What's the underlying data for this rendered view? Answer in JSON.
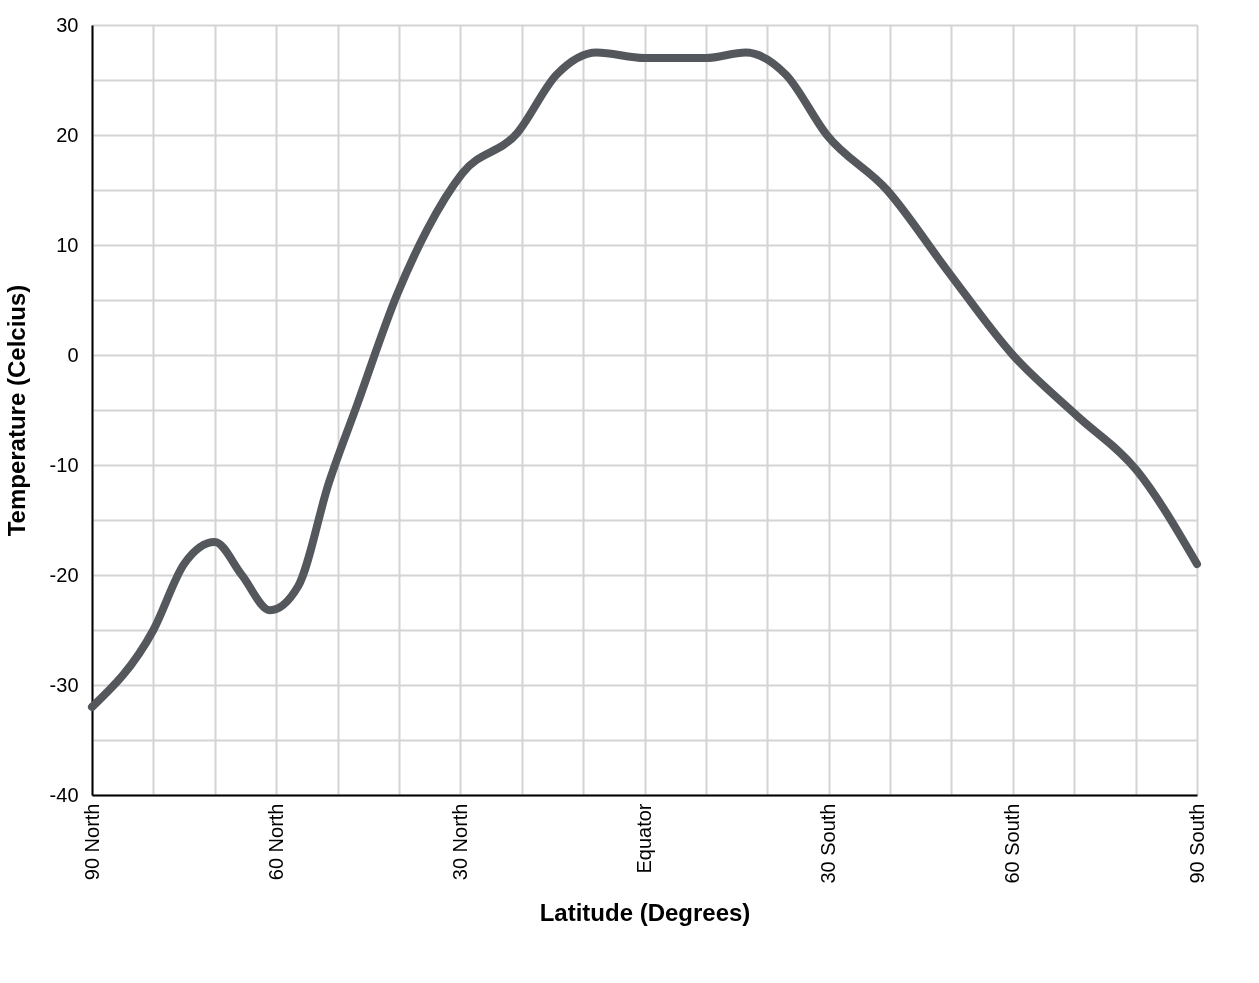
{
  "chart_data": {
    "type": "line",
    "xlabel": "Latitude (Degrees)",
    "ylabel": "Temperature (Celcius)",
    "x": [
      90,
      80,
      75,
      70,
      65.6,
      61,
      56.4,
      51.4,
      46.8,
      40.3,
      35.4,
      29.7,
      20.7,
      14.3,
      7.8,
      0,
      -10,
      -16.5,
      -23,
      -29.7,
      -39.5,
      -49.3,
      -60,
      -70.4,
      -80.2,
      -90
    ],
    "series": [
      {
        "color": "#54585d",
        "values": [
          -32,
          -25,
          -19,
          -17,
          -20,
          -23.2,
          -21,
          -11.6,
          -4.5,
          5.5,
          11.4,
          16.5,
          20.2,
          25.5,
          27.5,
          27,
          27,
          27.5,
          25.5,
          20,
          15,
          7.7,
          0,
          -5.5,
          -10.5,
          -19
        ]
      }
    ],
    "xlim": [
      90,
      -90
    ],
    "xticks": [
      {
        "value": 90,
        "label": "90 North"
      },
      {
        "value": 80,
        "label": null
      },
      {
        "value": 70,
        "label": null
      },
      {
        "value": 60,
        "label": "60 North"
      },
      {
        "value": 50,
        "label": null
      },
      {
        "value": 40,
        "label": null
      },
      {
        "value": 30,
        "label": "30 North"
      },
      {
        "value": 20,
        "label": null
      },
      {
        "value": 10,
        "label": null
      },
      {
        "value": 0,
        "label": "Equator"
      },
      {
        "value": -10,
        "label": null
      },
      {
        "value": -20,
        "label": null
      },
      {
        "value": -30,
        "label": "30 South"
      },
      {
        "value": -40,
        "label": null
      },
      {
        "value": -50,
        "label": null
      },
      {
        "value": -60,
        "label": "60 South"
      },
      {
        "value": -70,
        "label": null
      },
      {
        "value": -80,
        "label": null
      },
      {
        "value": -90,
        "label": "90 South"
      }
    ],
    "ylim": [
      -40,
      30
    ],
    "yticks": [
      -40,
      {
        "value": -35,
        "label": null
      },
      -30,
      {
        "value": -25,
        "label": null
      },
      -20,
      {
        "value": -15,
        "label": null
      },
      -10,
      {
        "value": -5,
        "label": null
      },
      0,
      {
        "value": 5,
        "label": null
      },
      10,
      {
        "value": 15,
        "label": null
      },
      20,
      {
        "value": 25,
        "label": null
      },
      30
    ],
    "grid": true,
    "marker": "none",
    "line_style": "solid"
  }
}
